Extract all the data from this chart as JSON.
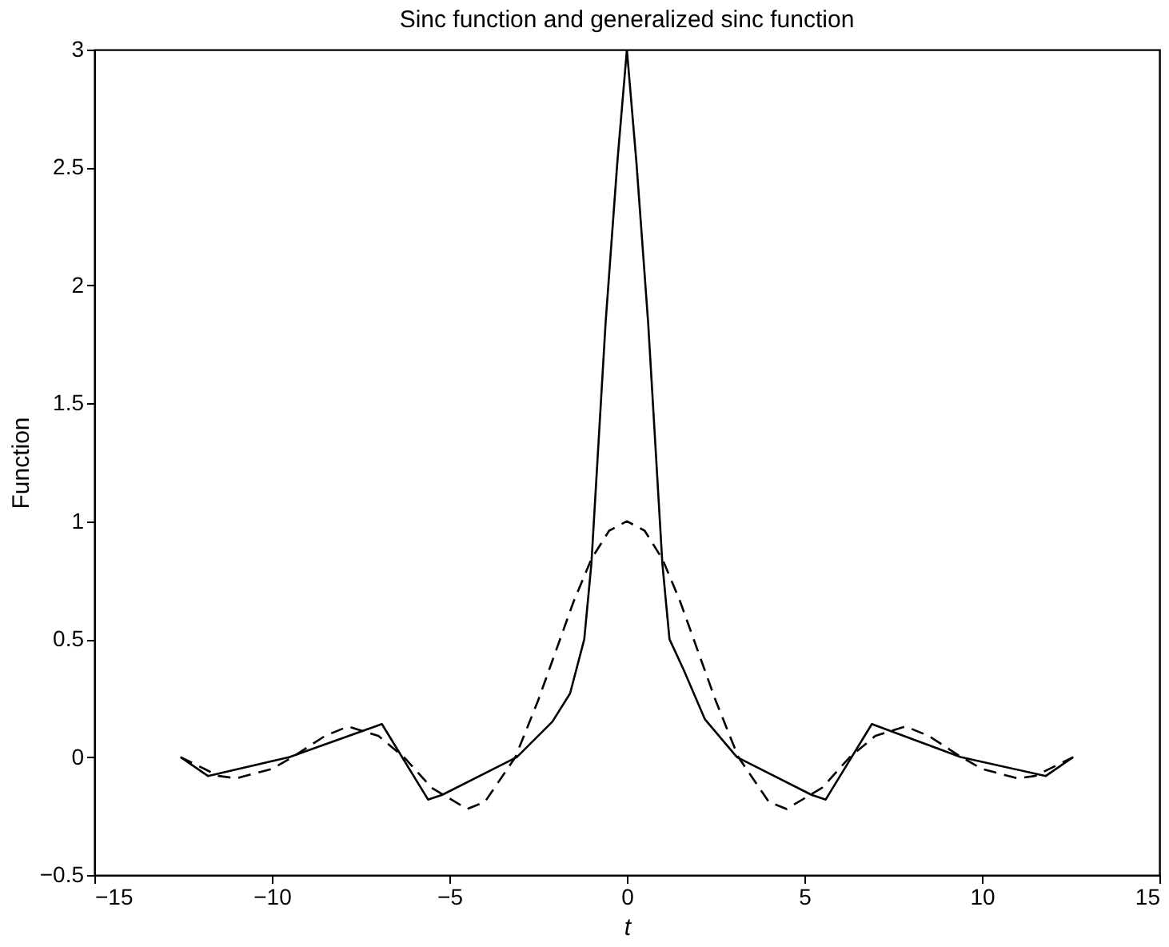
{
  "chart_data": {
    "type": "line",
    "title": "Sinc function and generalized sinc function",
    "xlabel": "t",
    "ylabel": "Function",
    "xlim": [
      -15,
      15
    ],
    "xticks": [
      -15,
      -10,
      -5,
      0,
      5,
      10,
      15
    ],
    "ylim": [
      -0.5,
      3
    ],
    "yticks": [
      -0.5,
      0,
      0.5,
      1,
      1.5,
      2,
      2.5,
      3
    ],
    "grid": false,
    "series": [
      {
        "color": "#000000",
        "line_style": "solid",
        "x": [
          -12.57,
          -11.8,
          -9.5,
          -6.9,
          -5.6,
          -5.2,
          -3.1,
          -2.1,
          -1.6,
          -1.2,
          -1.0,
          -0.6,
          -0.27,
          0,
          0.27,
          0.6,
          1.0,
          1.2,
          1.6,
          2.2,
          3.1,
          5.2,
          5.6,
          6.9,
          9.4,
          11.8,
          12.57
        ],
        "values": [
          0,
          -0.08,
          0,
          0.14,
          -0.18,
          -0.16,
          0,
          0.15,
          0.27,
          0.5,
          0.82,
          1.84,
          2.52,
          3,
          2.52,
          1.84,
          0.82,
          0.5,
          0.37,
          0.16,
          0,
          -0.16,
          -0.18,
          0.14,
          0,
          -0.08,
          0
        ]
      },
      {
        "color": "#000000",
        "line_style": "dashed",
        "x": [
          -12.57,
          -11.5,
          -11,
          -10,
          -9.42,
          -8.5,
          -7.85,
          -7,
          -6.28,
          -5.5,
          -4.5,
          -4,
          -3.14,
          -2.5,
          -2,
          -1.5,
          -1,
          -0.5,
          0,
          0.5,
          1,
          1.5,
          2,
          2.5,
          3.14,
          4,
          4.5,
          5.5,
          6.28,
          7,
          7.85,
          8.5,
          9.42,
          10,
          11,
          11.5,
          12.57
        ],
        "values": [
          0,
          -0.08,
          -0.09,
          -0.05,
          0,
          0.09,
          0.13,
          0.09,
          0,
          -0.13,
          -0.22,
          -0.19,
          0,
          0.24,
          0.45,
          0.66,
          0.84,
          0.96,
          1,
          0.96,
          0.84,
          0.66,
          0.45,
          0.24,
          0,
          -0.19,
          -0.22,
          -0.13,
          0,
          0.09,
          0.13,
          0.09,
          0,
          -0.05,
          -0.09,
          -0.08,
          0
        ]
      }
    ]
  }
}
